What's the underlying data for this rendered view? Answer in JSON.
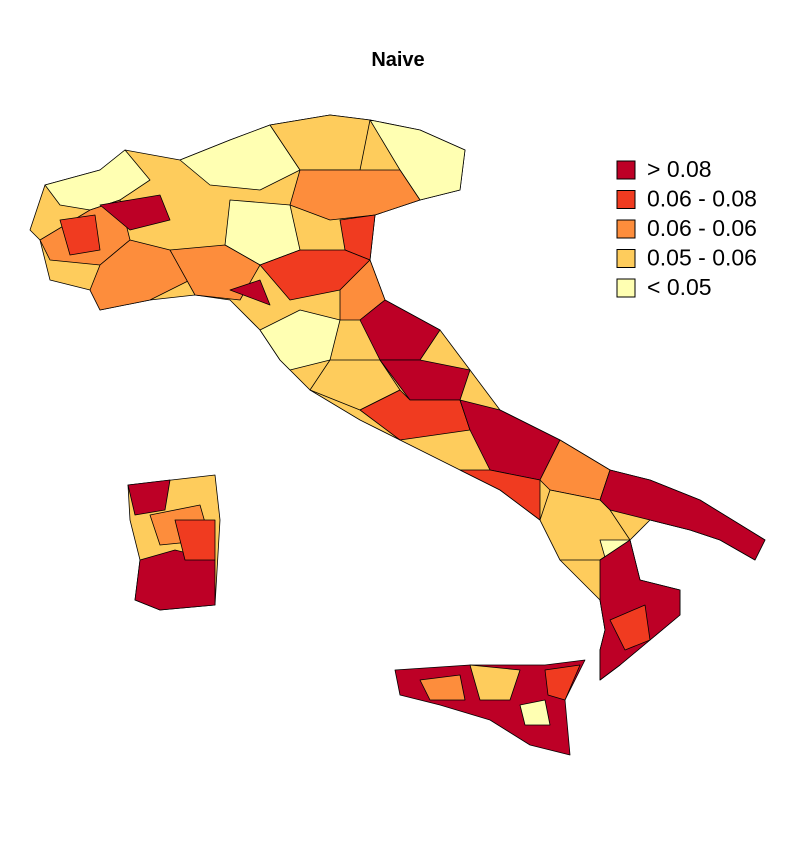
{
  "title": "Naive",
  "legend": {
    "items": [
      {
        "label": "> 0.08",
        "color": "#bd0026"
      },
      {
        "label": "0.06 - 0.08",
        "color": "#f03b20"
      },
      {
        "label": "0.06 - 0.06",
        "color": "#fd8d3c"
      },
      {
        "label": "0.05 - 0.06",
        "color": "#fecc5c"
      },
      {
        "label": "< 0.05",
        "color": "#ffffb2"
      }
    ]
  }
}
